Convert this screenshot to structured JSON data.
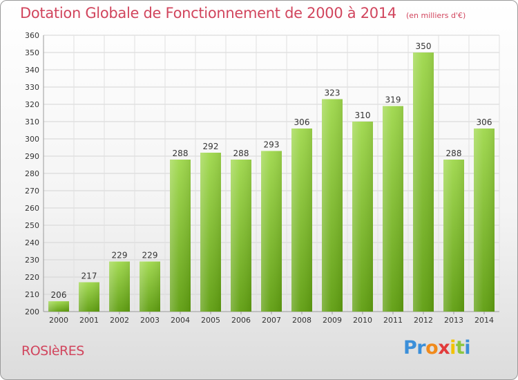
{
  "title": "Dotation Globale de Fonctionnement de 2000 à 2014",
  "subtitle": "(en milliers d'€)",
  "city": "ROSIèRES",
  "logo": {
    "letters": [
      "P",
      "r",
      "o",
      "x",
      "i",
      "t",
      "i"
    ],
    "colors": [
      "#3b8fd9",
      "#3b8fd9",
      "#f08a1c",
      "#e23b3b",
      "#f2c200",
      "#8cc63f",
      "#3b8fd9"
    ]
  },
  "colors": {
    "bar_light": "#9fd84c",
    "bar_dark": "#5f9e10",
    "text_accent": "#d1455d"
  },
  "chart_data": {
    "type": "bar",
    "categories": [
      "2000",
      "2001",
      "2002",
      "2003",
      "2004",
      "2005",
      "2006",
      "2007",
      "2008",
      "2009",
      "2010",
      "2011",
      "2012",
      "2013",
      "2014"
    ],
    "values": [
      206,
      217,
      229,
      229,
      288,
      292,
      288,
      293,
      306,
      323,
      310,
      319,
      350,
      288,
      306
    ],
    "ylim": [
      200,
      360
    ],
    "yticks": [
      200,
      210,
      220,
      230,
      240,
      250,
      260,
      270,
      280,
      290,
      300,
      310,
      320,
      330,
      340,
      350,
      360
    ],
    "grid": true,
    "xlabel": "",
    "ylabel": ""
  }
}
